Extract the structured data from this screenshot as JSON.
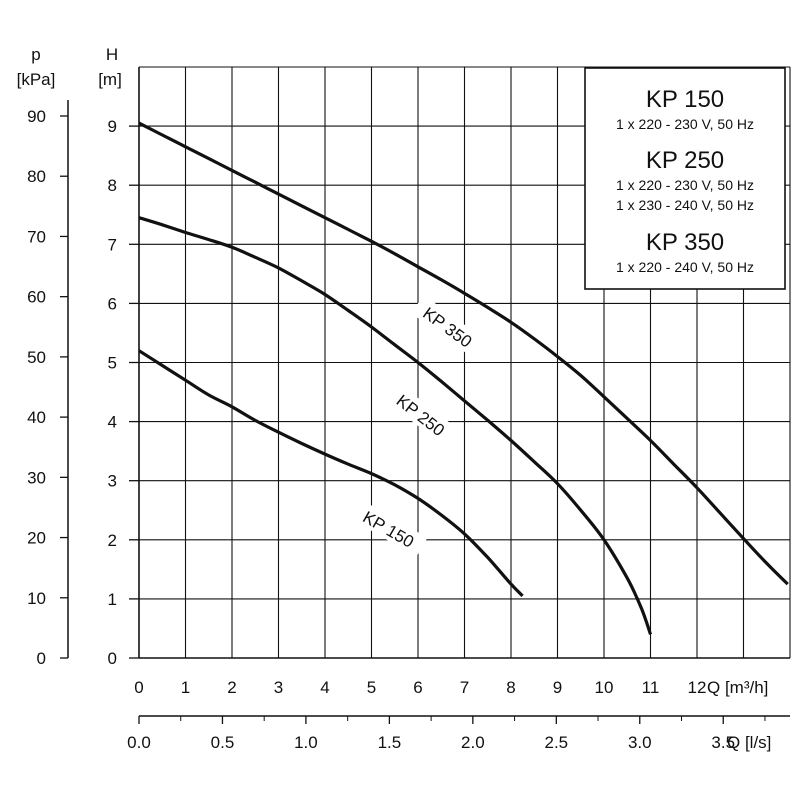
{
  "chart_data": {
    "type": "line",
    "axes": {
      "pressure": {
        "title": "p",
        "unit": "[kPa]",
        "ticks": [
          "90",
          "80",
          "70",
          "60",
          "50",
          "40",
          "30",
          "20",
          "10",
          "0"
        ],
        "range": [
          0,
          90
        ]
      },
      "head": {
        "title": "H",
        "unit": "[m]",
        "ticks": [
          "9",
          "8",
          "7",
          "6",
          "5",
          "4",
          "3",
          "2",
          "1",
          "0"
        ],
        "range": [
          0,
          9
        ]
      },
      "flow_m3h": {
        "label": "Q [m³/h]",
        "ticks": [
          "0",
          "1",
          "2",
          "3",
          "4",
          "5",
          "6",
          "7",
          "8",
          "9",
          "10",
          "11",
          "12"
        ],
        "range": [
          0,
          14
        ]
      },
      "flow_ls": {
        "label": "Q [l/s]",
        "ticks": [
          "0.0",
          "0.5",
          "1.0",
          "1.5",
          "2.0",
          "2.5",
          "3.0",
          "3.5"
        ],
        "range": [
          0,
          3.9
        ]
      }
    },
    "grid": true,
    "series": [
      {
        "name": "KP 150",
        "points": [
          [
            0,
            5.2
          ],
          [
            0.5,
            4.95
          ],
          [
            1,
            4.7
          ],
          [
            1.5,
            4.45
          ],
          [
            2,
            4.25
          ],
          [
            2.5,
            4.02
          ],
          [
            3,
            3.82
          ],
          [
            3.5,
            3.63
          ],
          [
            4,
            3.45
          ],
          [
            4.5,
            3.28
          ],
          [
            5,
            3.12
          ],
          [
            5.5,
            2.93
          ],
          [
            6,
            2.7
          ],
          [
            6.5,
            2.42
          ],
          [
            7,
            2.1
          ],
          [
            7.5,
            1.7
          ],
          [
            8,
            1.25
          ],
          [
            8.25,
            1.05
          ]
        ]
      },
      {
        "name": "KP 250",
        "points": [
          [
            0,
            7.45
          ],
          [
            0.5,
            7.33
          ],
          [
            1,
            7.2
          ],
          [
            1.5,
            7.08
          ],
          [
            2,
            6.95
          ],
          [
            2.5,
            6.78
          ],
          [
            3,
            6.6
          ],
          [
            3.5,
            6.38
          ],
          [
            4,
            6.15
          ],
          [
            4.5,
            5.88
          ],
          [
            5,
            5.6
          ],
          [
            5.5,
            5.3
          ],
          [
            6,
            5.0
          ],
          [
            6.5,
            4.68
          ],
          [
            7,
            4.35
          ],
          [
            7.5,
            4.02
          ],
          [
            8,
            3.68
          ],
          [
            8.5,
            3.32
          ],
          [
            9,
            2.95
          ],
          [
            9.5,
            2.5
          ],
          [
            10,
            2.0
          ],
          [
            10.5,
            1.35
          ],
          [
            10.8,
            0.85
          ],
          [
            11,
            0.4
          ]
        ]
      },
      {
        "name": "KP 350",
        "points": [
          [
            0,
            9.05
          ],
          [
            0.5,
            8.85
          ],
          [
            1,
            8.65
          ],
          [
            1.5,
            8.45
          ],
          [
            2,
            8.25
          ],
          [
            2.5,
            8.05
          ],
          [
            3,
            7.85
          ],
          [
            3.5,
            7.65
          ],
          [
            4,
            7.45
          ],
          [
            4.5,
            7.25
          ],
          [
            5,
            7.05
          ],
          [
            5.5,
            6.84
          ],
          [
            6,
            6.62
          ],
          [
            6.5,
            6.4
          ],
          [
            7,
            6.17
          ],
          [
            7.5,
            5.93
          ],
          [
            8,
            5.68
          ],
          [
            8.5,
            5.4
          ],
          [
            9,
            5.1
          ],
          [
            9.5,
            4.78
          ],
          [
            10,
            4.42
          ],
          [
            10.5,
            4.05
          ],
          [
            11,
            3.68
          ],
          [
            11.5,
            3.28
          ],
          [
            12,
            2.88
          ],
          [
            12.5,
            2.45
          ],
          [
            13,
            2.02
          ],
          [
            13.5,
            1.6
          ],
          [
            13.95,
            1.25
          ]
        ]
      }
    ]
  },
  "legend": {
    "blocks": [
      {
        "model": "KP 150",
        "voltages": [
          "1 x 220 - 230 V, 50 Hz"
        ]
      },
      {
        "model": "KP 250",
        "voltages": [
          "1 x 220 - 230 V, 50 Hz",
          "1 x 230 - 240 V, 50 Hz"
        ]
      },
      {
        "model": "KP 350",
        "voltages": [
          "1 x 220 - 240 V, 50 Hz"
        ]
      }
    ]
  },
  "colors": {
    "curve": "#111111",
    "grid": "#111111",
    "background": "#ffffff"
  }
}
